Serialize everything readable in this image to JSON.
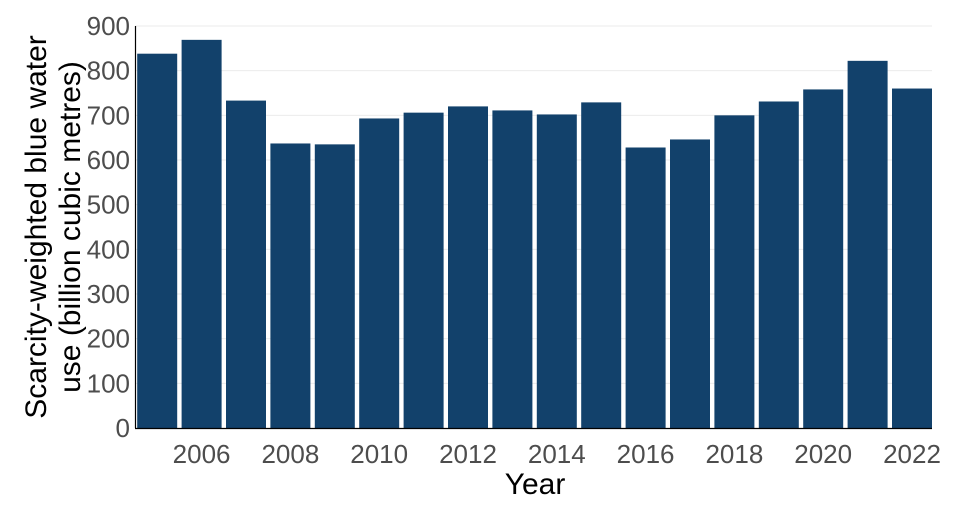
{
  "chart_data": {
    "type": "bar",
    "categories": [
      "2005",
      "2006",
      "2007",
      "2008",
      "2009",
      "2010",
      "2011",
      "2012",
      "2013",
      "2014",
      "2015",
      "2016",
      "2017",
      "2018",
      "2019",
      "2020",
      "2021",
      "2022"
    ],
    "values": [
      838,
      869,
      733,
      637,
      635,
      693,
      706,
      720,
      711,
      702,
      729,
      628,
      646,
      700,
      731,
      758,
      822,
      760
    ],
    "xlabel": "Year",
    "ylabel_lines": [
      "Scarcity-weighted blue water",
      "use (billion cubic metres)"
    ],
    "ylim": [
      0,
      900
    ],
    "yticks": [
      0,
      100,
      200,
      300,
      400,
      500,
      600,
      700,
      800,
      900
    ],
    "xticks": [
      "2006",
      "2008",
      "2010",
      "2012",
      "2014",
      "2016",
      "2018",
      "2020",
      "2022"
    ],
    "grid": "horizontal",
    "bar_color": "#12416b"
  }
}
